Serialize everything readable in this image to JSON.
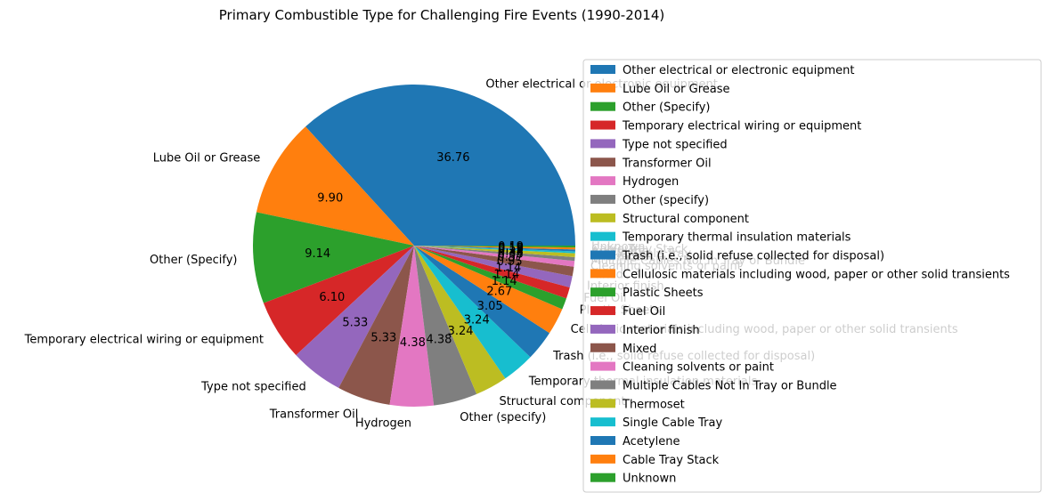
{
  "chart_data": {
    "type": "pie",
    "title": "Primary Combustible Type for Challenging Fire Events (1990-2014)",
    "legend_position": "right",
    "start_angle": "east",
    "direction": "counterclockwise",
    "slices": [
      {
        "label": "Other electrical or electronic equipment",
        "value": 36.76,
        "pct_label": "36.76",
        "color": "#1f77b4"
      },
      {
        "label": "Lube Oil or Grease",
        "value": 9.9,
        "pct_label": "9.90",
        "color": "#ff7f0e"
      },
      {
        "label": "Other (Specify)",
        "value": 9.14,
        "pct_label": "9.14",
        "color": "#2ca02c"
      },
      {
        "label": "Temporary electrical wiring or equipment",
        "value": 6.1,
        "pct_label": "6.10",
        "color": "#d62728"
      },
      {
        "label": "Type not specified",
        "value": 5.33,
        "pct_label": "5.33",
        "color": "#9467bd"
      },
      {
        "label": "Transformer Oil",
        "value": 5.33,
        "pct_label": "5.33",
        "color": "#8c564b"
      },
      {
        "label": "Hydrogen",
        "value": 4.38,
        "pct_label": "4.38",
        "color": "#e377c2"
      },
      {
        "label": "Other (specify)",
        "value": 4.38,
        "pct_label": "4.38",
        "color": "#7f7f7f"
      },
      {
        "label": "Structural component",
        "value": 3.24,
        "pct_label": "3.24",
        "color": "#bcbd22"
      },
      {
        "label": "Temporary thermal insulation materials",
        "value": 3.24,
        "pct_label": "3.24",
        "color": "#17becf"
      },
      {
        "label": "Trash (i.e., solid refuse collected for disposal)",
        "value": 3.05,
        "pct_label": "3.05",
        "color": "#1f77b4"
      },
      {
        "label": "Cellulosic materials including wood, paper or other solid transients",
        "value": 2.67,
        "pct_label": "2.67",
        "color": "#ff7f0e"
      },
      {
        "label": "Plastic Sheets",
        "value": 1.14,
        "pct_label": "1.14",
        "color": "#2ca02c"
      },
      {
        "label": "Fuel Oil",
        "value": 1.14,
        "pct_label": "1.14",
        "color": "#d62728"
      },
      {
        "label": "Interior finish",
        "value": 1.14,
        "pct_label": "1.14",
        "color": "#9467bd"
      },
      {
        "label": "Mixed",
        "value": 0.95,
        "pct_label": "0.95",
        "color": "#8c564b"
      },
      {
        "label": "Cleaning solvents or paint",
        "value": 0.57,
        "pct_label": "0.57",
        "color": "#e377c2"
      },
      {
        "label": "Multiple Cables Not In Tray or Bundle",
        "value": 0.38,
        "pct_label": "0.38",
        "color": "#7f7f7f"
      },
      {
        "label": "Thermoset",
        "value": 0.38,
        "pct_label": "0.38",
        "color": "#bcbd22"
      },
      {
        "label": "Single Cable Tray",
        "value": 0.19,
        "pct_label": "0.19",
        "color": "#17becf"
      },
      {
        "label": "Acetylene",
        "value": 0.19,
        "pct_label": "0.19",
        "color": "#1f77b4"
      },
      {
        "label": "Cable Tray Stack",
        "value": 0.19,
        "pct_label": "0.19",
        "color": "#ff7f0e"
      },
      {
        "label": "Unknown",
        "value": 0.19,
        "pct_label": "0.19",
        "color": "#2ca02c"
      }
    ]
  }
}
